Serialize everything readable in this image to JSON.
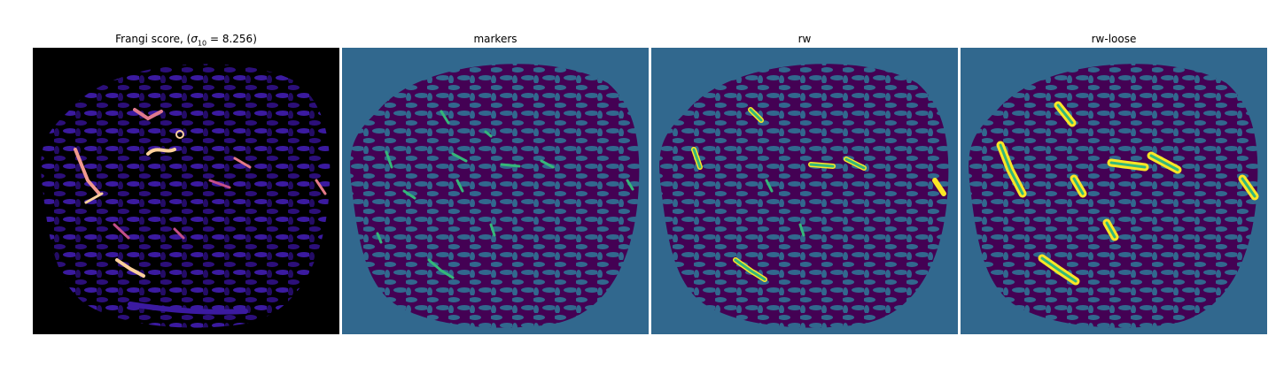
{
  "panels": [
    {
      "title_prefix": "Frangi score, (",
      "title_sigma": "σ",
      "title_subscript": "10",
      "title_suffix": " = 8.256)",
      "colormap": "magma"
    },
    {
      "title": "markers"
    },
    {
      "title": "rw"
    },
    {
      "title": "rw-loose"
    }
  ],
  "colors": {
    "frangi_background": "#000000",
    "frangi_low": "#3b0f9e",
    "frangi_mid": "#b53679",
    "frangi_high": "#fcfdbf",
    "label_background": "#31688e",
    "label_tissue": "#440154",
    "label_marker": "#35b779",
    "label_vessel": "#fde725"
  }
}
